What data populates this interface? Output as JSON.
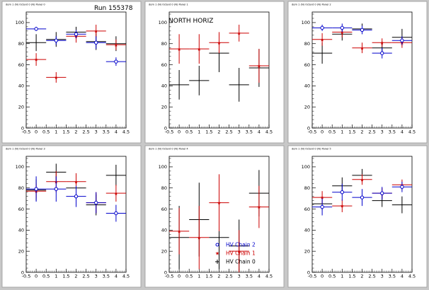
{
  "chart_data": [
    {
      "type": "scatter",
      "title": "dom 1 (N) Octant 0 (N) Panel 0",
      "annotation": "Run 155378",
      "xlim": [
        -0.5,
        4.5
      ],
      "ylim": [
        0,
        110
      ],
      "xticks": [
        "-0.5",
        "0",
        "0.5",
        "1",
        "1.5",
        "2",
        "2.5",
        "3",
        "3.5",
        "4",
        "4.5"
      ],
      "yticks": [
        "0",
        "20",
        "40",
        "60",
        "80",
        "100"
      ],
      "series": [
        {
          "color": "#0000cc",
          "marker": "circle",
          "points": [
            {
              "x": 0,
              "y": 94,
              "xerr": 0.5,
              "yerr": 2
            },
            {
              "x": 1,
              "y": 83,
              "xerr": 0.5,
              "yerr": 4
            },
            {
              "x": 2,
              "y": 89,
              "xerr": 0.5,
              "yerr": 4
            },
            {
              "x": 3,
              "y": 81,
              "xerr": 0.5,
              "yerr": 6
            },
            {
              "x": 4,
              "y": 63,
              "xerr": 0.5,
              "yerr": 4
            }
          ]
        },
        {
          "color": "#cc0000",
          "marker": "star",
          "points": [
            {
              "x": 0,
              "y": 65,
              "xerr": 0.5,
              "yerr": 6
            },
            {
              "x": 1,
              "y": 48,
              "xerr": 0.5,
              "yerr": 5
            },
            {
              "x": 2,
              "y": 87,
              "xerr": 0.5,
              "yerr": 6
            },
            {
              "x": 3,
              "y": 92,
              "xerr": 0.5,
              "yerr": 6
            },
            {
              "x": 4,
              "y": 79,
              "xerr": 0.5,
              "yerr": 5
            }
          ]
        },
        {
          "color": "#000000",
          "marker": "none",
          "points": [
            {
              "x": 0,
              "y": 81,
              "xerr": 0.5,
              "yerr": 8
            },
            {
              "x": 1,
              "y": 84,
              "xerr": 0.5,
              "yerr": 7
            },
            {
              "x": 2,
              "y": 91,
              "xerr": 0.5,
              "yerr": 5
            },
            {
              "x": 3,
              "y": 82,
              "xerr": 0.5,
              "yerr": 8
            },
            {
              "x": 4,
              "y": 80,
              "xerr": 0.5,
              "yerr": 7
            }
          ]
        }
      ]
    },
    {
      "type": "scatter",
      "title": "dom 1 (N) Octant 0 (N) Panel 1",
      "annotation": "NORTH HORIZ",
      "xlim": [
        -0.5,
        4.5
      ],
      "ylim": [
        0,
        110
      ],
      "xticks": [
        "-0.5",
        "0",
        "0.5",
        "1",
        "1.5",
        "2",
        "2.5",
        "3",
        "3.5",
        "4",
        "4.5"
      ],
      "yticks": [
        "0",
        "20",
        "40",
        "60",
        "80",
        "100"
      ],
      "series": [
        {
          "color": "#0000cc",
          "marker": "circle",
          "points": []
        },
        {
          "color": "#cc0000",
          "marker": "star",
          "points": [
            {
              "x": 0,
              "y": 75,
              "xerr": 0.5,
              "yerr": 14
            },
            {
              "x": 1,
              "y": 75,
              "xerr": 0.5,
              "yerr": 14
            },
            {
              "x": 2,
              "y": 81,
              "xerr": 0.5,
              "yerr": 10
            },
            {
              "x": 3,
              "y": 90,
              "xerr": 0.5,
              "yerr": 8
            },
            {
              "x": 4,
              "y": 59,
              "xerr": 0.5,
              "yerr": 16
            }
          ]
        },
        {
          "color": "#000000",
          "marker": "none",
          "points": [
            {
              "x": 0,
              "y": 41,
              "xerr": 0.5,
              "yerr": 14
            },
            {
              "x": 1,
              "y": 45,
              "xerr": 0.5,
              "yerr": 14
            },
            {
              "x": 2,
              "y": 71,
              "xerr": 0.5,
              "yerr": 18
            },
            {
              "x": 3,
              "y": 41,
              "xerr": 0.5,
              "yerr": 16
            },
            {
              "x": 4,
              "y": 57,
              "xerr": 0.5,
              "yerr": 18
            }
          ]
        }
      ]
    },
    {
      "type": "scatter",
      "title": "dom 1 (N) Octant 0 (N) Panel 2",
      "annotation": "",
      "xlim": [
        -0.5,
        4.5
      ],
      "ylim": [
        0,
        110
      ],
      "xticks": [
        "-0.5",
        "0",
        "0.5",
        "1",
        "1.5",
        "2",
        "2.5",
        "3",
        "3.5",
        "4",
        "4.5"
      ],
      "yticks": [
        "0",
        "20",
        "40",
        "60",
        "80",
        "100"
      ],
      "series": [
        {
          "color": "#0000cc",
          "marker": "circle",
          "points": [
            {
              "x": 0,
              "y": 95,
              "xerr": 0.5,
              "yerr": 3
            },
            {
              "x": 1,
              "y": 95,
              "xerr": 0.5,
              "yerr": 4
            },
            {
              "x": 2,
              "y": 93,
              "xerr": 0.5,
              "yerr": 4
            },
            {
              "x": 3,
              "y": 71,
              "xerr": 0.5,
              "yerr": 5
            },
            {
              "x": 4,
              "y": 83,
              "xerr": 0.5,
              "yerr": 4
            }
          ]
        },
        {
          "color": "#cc0000",
          "marker": "star",
          "points": [
            {
              "x": 0,
              "y": 84,
              "xerr": 0.5,
              "yerr": 6
            },
            {
              "x": 1,
              "y": 91,
              "xerr": 0.5,
              "yerr": 5
            },
            {
              "x": 2,
              "y": 76,
              "xerr": 0.5,
              "yerr": 5
            },
            {
              "x": 3,
              "y": 81,
              "xerr": 0.5,
              "yerr": 4
            },
            {
              "x": 4,
              "y": 81,
              "xerr": 0.5,
              "yerr": 5
            }
          ]
        },
        {
          "color": "#000000",
          "marker": "none",
          "points": [
            {
              "x": 0,
              "y": 71,
              "xerr": 0.5,
              "yerr": 10
            },
            {
              "x": 1,
              "y": 89,
              "xerr": 0.5,
              "yerr": 6
            },
            {
              "x": 2,
              "y": 94,
              "xerr": 0.5,
              "yerr": 5
            },
            {
              "x": 3,
              "y": 76,
              "xerr": 0.5,
              "yerr": 6
            },
            {
              "x": 4,
              "y": 86,
              "xerr": 0.5,
              "yerr": 8
            }
          ]
        }
      ]
    },
    {
      "type": "scatter",
      "title": "dom 1 (N) Octant 0 (N) Panel 3",
      "annotation": "",
      "xlim": [
        -0.5,
        4.5
      ],
      "ylim": [
        0,
        110
      ],
      "xticks": [
        "-0.5",
        "0",
        "0.5",
        "1",
        "1.5",
        "2",
        "2.5",
        "3",
        "3.5",
        "4",
        "4.5"
      ],
      "yticks": [
        "0",
        "20",
        "40",
        "60",
        "80",
        "100"
      ],
      "series": [
        {
          "color": "#0000cc",
          "marker": "circle",
          "points": [
            {
              "x": 0,
              "y": 79,
              "xerr": 0.5,
              "yerr": 12
            },
            {
              "x": 1,
              "y": 79,
              "xerr": 0.5,
              "yerr": 12
            },
            {
              "x": 2,
              "y": 72,
              "xerr": 0.5,
              "yerr": 10
            },
            {
              "x": 3,
              "y": 66,
              "xerr": 0.5,
              "yerr": 10
            },
            {
              "x": 4,
              "y": 56,
              "xerr": 0.5,
              "yerr": 8
            }
          ]
        },
        {
          "color": "#cc0000",
          "marker": "star",
          "points": [
            {
              "x": 0,
              "y": 77,
              "xerr": 0.5,
              "yerr": 7
            },
            {
              "x": 1,
              "y": 86,
              "xerr": 0.5,
              "yerr": 10
            },
            {
              "x": 2,
              "y": 86,
              "xerr": 0.5,
              "yerr": 8
            },
            {
              "x": 3,
              "y": 66,
              "xerr": 0.5,
              "yerr": 10
            },
            {
              "x": 4,
              "y": 75,
              "xerr": 0.5,
              "yerr": 8
            }
          ]
        },
        {
          "color": "#000000",
          "marker": "none",
          "points": [
            {
              "x": 0,
              "y": 78,
              "xerr": 0.5,
              "yerr": 10
            },
            {
              "x": 1,
              "y": 95,
              "xerr": 0.5,
              "yerr": 8
            },
            {
              "x": 2,
              "y": 80,
              "xerr": 0.5,
              "yerr": 10
            },
            {
              "x": 3,
              "y": 64,
              "xerr": 0.5,
              "yerr": 10
            },
            {
              "x": 4,
              "y": 92,
              "xerr": 0.5,
              "yerr": 10
            }
          ]
        }
      ]
    },
    {
      "type": "scatter",
      "title": "dom 1 (N) Octant 0 (N) Panel 4",
      "annotation": "",
      "xlim": [
        -0.5,
        4.5
      ],
      "ylim": [
        0,
        110
      ],
      "xticks": [
        "-0.5",
        "0",
        "0.5",
        "1",
        "1.5",
        "2",
        "2.5",
        "3",
        "3.5",
        "4",
        "4.5"
      ],
      "yticks": [
        "0",
        "20",
        "40",
        "60",
        "80",
        "100"
      ],
      "series": [
        {
          "color": "#0000cc",
          "marker": "circle",
          "points": []
        },
        {
          "color": "#cc0000",
          "marker": "star",
          "points": [
            {
              "x": 0,
              "y": 39,
              "xerr": 0.5,
              "yerr": 22
            },
            {
              "x": 1,
              "y": 33,
              "xerr": 0.5,
              "yerr": 30
            },
            {
              "x": 2,
              "y": 66,
              "xerr": 0.5,
              "yerr": 27
            },
            {
              "x": 3,
              "y": 20,
              "xerr": 0.5,
              "yerr": 20
            },
            {
              "x": 4,
              "y": 62,
              "xerr": 0.5,
              "yerr": 20
            }
          ]
        },
        {
          "color": "#000000",
          "marker": "none",
          "points": [
            {
              "x": 0,
              "y": 33,
              "xerr": 0.5,
              "yerr": 30
            },
            {
              "x": 1,
              "y": 50,
              "xerr": 0.5,
              "yerr": 35
            },
            {
              "x": 2,
              "y": 33,
              "xerr": 0.5,
              "yerr": 30
            },
            {
              "x": 3,
              "y": 25,
              "xerr": 0.5,
              "yerr": 25
            },
            {
              "x": 4,
              "y": 75,
              "xerr": 0.5,
              "yerr": 22
            }
          ]
        }
      ],
      "legend": {
        "location": "bottom-right",
        "entries": [
          {
            "label": "HV Chain 2",
            "color": "#0000cc",
            "marker": "circle"
          },
          {
            "label": "HV Chain 1",
            "color": "#cc0000",
            "marker": "star"
          },
          {
            "label": "HV Chain 0",
            "color": "#000000",
            "marker": "plus"
          }
        ]
      }
    },
    {
      "type": "scatter",
      "title": "dom 1 (N) Octant 0 (N) Panel 5",
      "annotation": "",
      "xlim": [
        -0.5,
        4.5
      ],
      "ylim": [
        0,
        110
      ],
      "xticks": [
        "-0.5",
        "0",
        "0.5",
        "1",
        "1.5",
        "2",
        "2.5",
        "3",
        "3.5",
        "4",
        "4.5"
      ],
      "yticks": [
        "0",
        "20",
        "40",
        "60",
        "80",
        "100"
      ],
      "series": [
        {
          "color": "#0000cc",
          "marker": "circle",
          "points": [
            {
              "x": 0,
              "y": 62,
              "xerr": 0.5,
              "yerr": 8
            },
            {
              "x": 1,
              "y": 76,
              "xerr": 0.5,
              "yerr": 8
            },
            {
              "x": 2,
              "y": 71,
              "xerr": 0.5,
              "yerr": 8
            },
            {
              "x": 3,
              "y": 75,
              "xerr": 0.5,
              "yerr": 6
            },
            {
              "x": 4,
              "y": 81,
              "xerr": 0.5,
              "yerr": 5
            }
          ]
        },
        {
          "color": "#cc0000",
          "marker": "star",
          "points": [
            {
              "x": 0,
              "y": 71,
              "xerr": 0.5,
              "yerr": 6
            },
            {
              "x": 1,
              "y": 63,
              "xerr": 0.5,
              "yerr": 6
            },
            {
              "x": 2,
              "y": 88,
              "xerr": 0.5,
              "yerr": 5
            },
            {
              "x": 3,
              "y": 75,
              "xerr": 0.5,
              "yerr": 5
            },
            {
              "x": 4,
              "y": 83,
              "xerr": 0.5,
              "yerr": 5
            }
          ]
        },
        {
          "color": "#000000",
          "marker": "none",
          "points": [
            {
              "x": 0,
              "y": 65,
              "xerr": 0.5,
              "yerr": 6
            },
            {
              "x": 1,
              "y": 82,
              "xerr": 0.5,
              "yerr": 8
            },
            {
              "x": 2,
              "y": 92,
              "xerr": 0.5,
              "yerr": 6
            },
            {
              "x": 3,
              "y": 68,
              "xerr": 0.5,
              "yerr": 6
            },
            {
              "x": 4,
              "y": 64,
              "xerr": 0.5,
              "yerr": 8
            }
          ]
        }
      ]
    }
  ]
}
